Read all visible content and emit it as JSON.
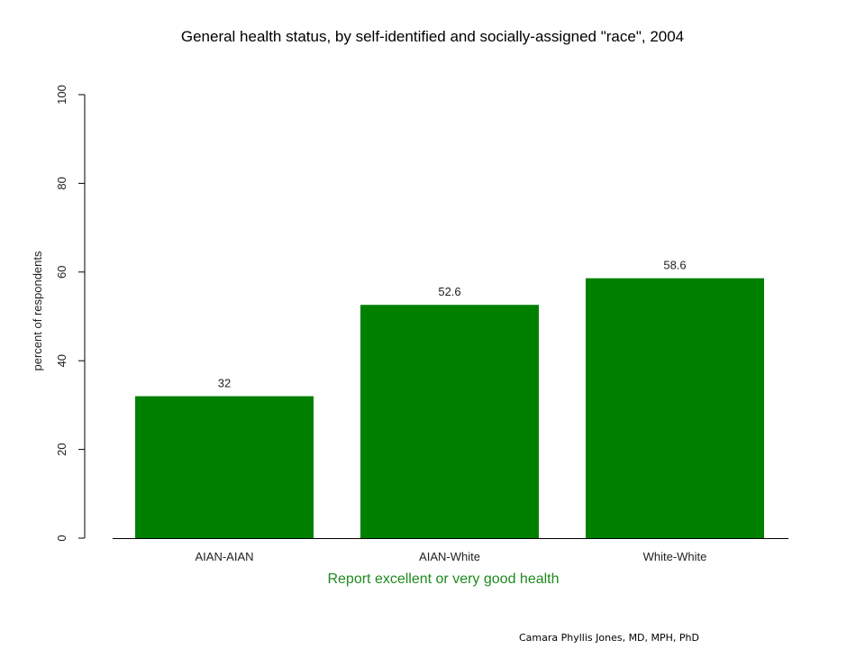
{
  "chart_data": {
    "type": "bar",
    "title": "General health status, by self-identified and socially-assigned \"race\", 2004",
    "xlabel": "Report excellent or very good health",
    "ylabel": "percent of respondents",
    "categories": [
      "AIAN-AIAN",
      "AIAN-White",
      "White-White"
    ],
    "values": [
      32,
      52.6,
      58.6
    ],
    "value_labels": [
      "32",
      "52.6",
      "58.6"
    ],
    "ylim": [
      0,
      100
    ],
    "yticks": [
      0,
      20,
      40,
      60,
      80,
      100
    ],
    "ytick_labels": [
      "0",
      "20",
      "40",
      "60",
      "80",
      "100"
    ],
    "grid": false,
    "bar_color": "#008000",
    "xlabel_color": "#1f8a1f"
  },
  "credit": "Camara Phyllis Jones, MD, MPH, PhD"
}
